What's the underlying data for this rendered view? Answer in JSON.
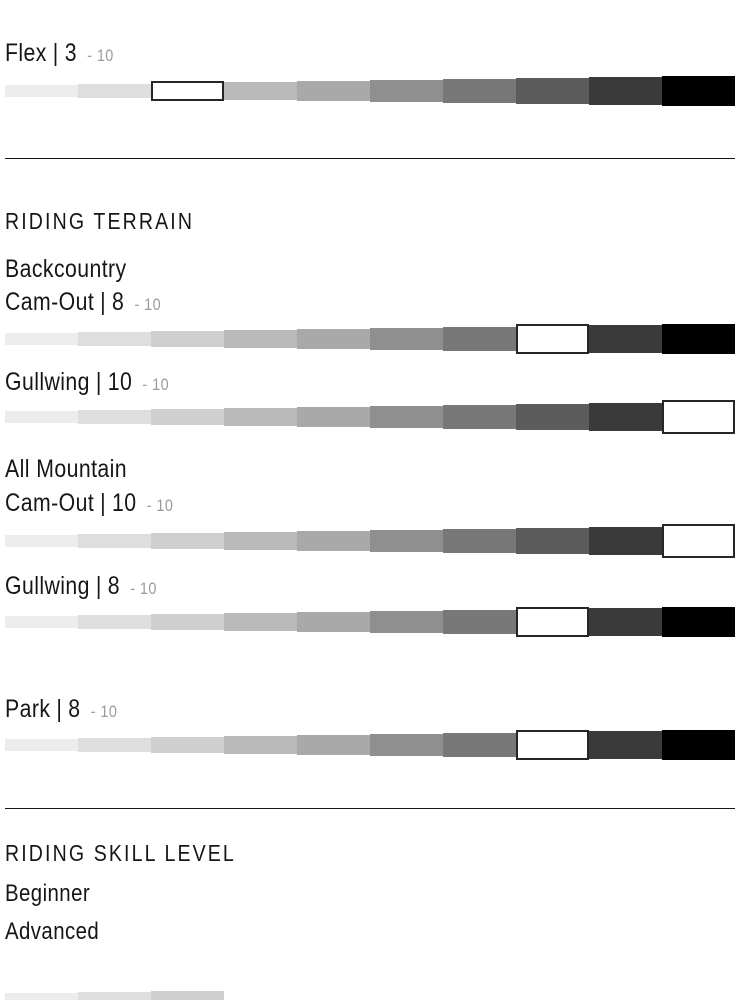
{
  "ui": {
    "pipe": "|",
    "scale_max": 10
  },
  "colors": {
    "text": "#161616",
    "muted": "#9b9b9b",
    "divider": "#161616",
    "highlight_fill": "#ffffff",
    "highlight_border": "#262626",
    "scale": [
      "#ececec",
      "#dedede",
      "#cfcfcf",
      "#b9b9b9",
      "#a9a9a9",
      "#8f8f8f",
      "#787878",
      "#5c5c5c",
      "#3a3a3a",
      "#000000"
    ]
  },
  "flex": {
    "label": "Flex",
    "value": 3,
    "suffix": "- 10"
  },
  "riding_terrain": {
    "heading": "RIDING TERRAIN",
    "backcountry": {
      "name": "Backcountry",
      "cam_out": {
        "label": "Cam-Out",
        "value": 8,
        "suffix": "- 10"
      },
      "gullwing": {
        "label": "Gullwing",
        "value": 10,
        "suffix": "- 10"
      }
    },
    "all_mountain": {
      "name": "All Mountain",
      "cam_out": {
        "label": "Cam-Out",
        "value": 10,
        "suffix": "- 10"
      },
      "gullwing": {
        "label": "Gullwing",
        "value": 8,
        "suffix": "- 10"
      }
    },
    "park": {
      "label": "Park",
      "value": 8,
      "suffix": "- 10"
    }
  },
  "riding_skill": {
    "heading": "RIDING SKILL LEVEL",
    "levels": [
      "Beginner",
      "Advanced"
    ]
  },
  "bottom_partial_bar": {
    "visible_segments": 3
  }
}
